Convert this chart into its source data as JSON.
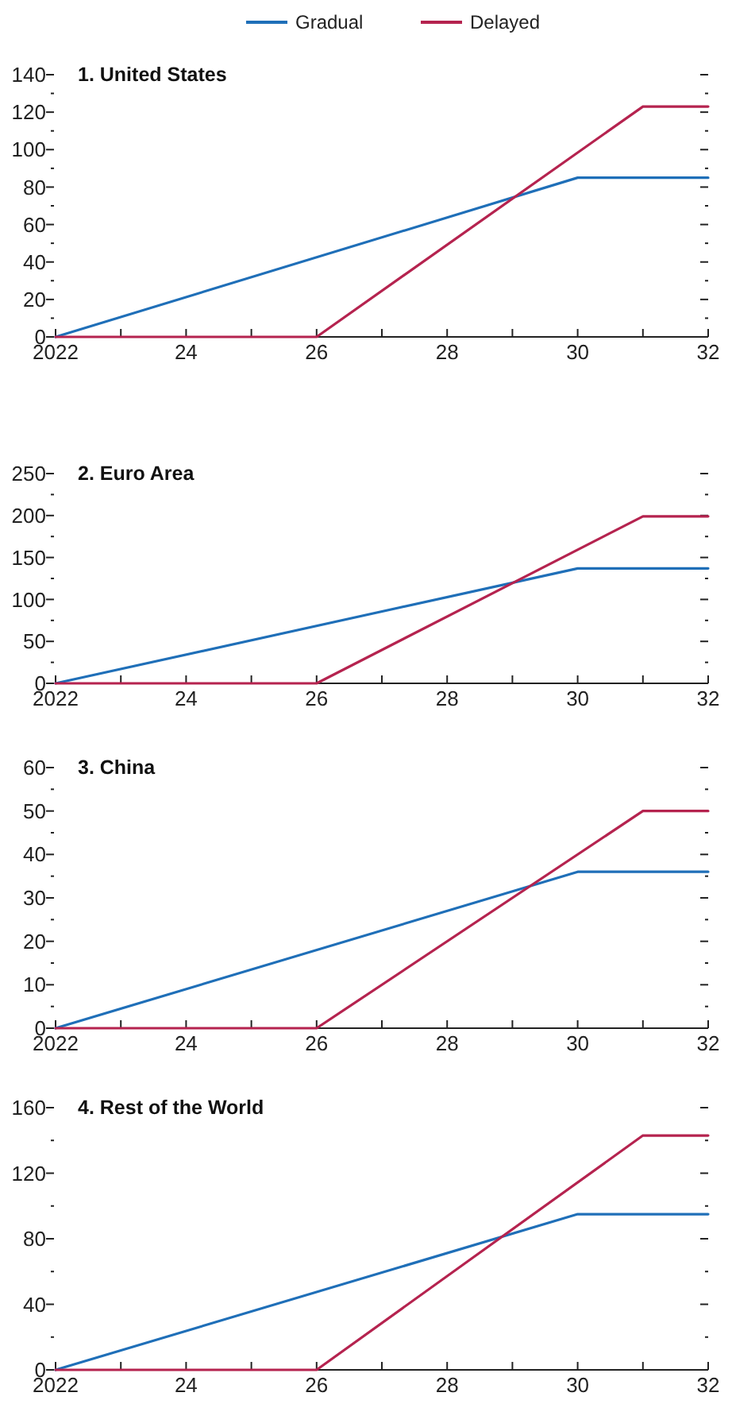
{
  "chart_data": [
    {
      "type": "line",
      "title": "1. United States",
      "legend": "top",
      "xlim": [
        2022,
        2032
      ],
      "xticks": [
        {
          "value": 2022,
          "label": "2022"
        },
        {
          "value": 2023,
          "label": null
        },
        {
          "value": 2024,
          "label": "24"
        },
        {
          "value": 2025,
          "label": null
        },
        {
          "value": 2026,
          "label": "26"
        },
        {
          "value": 2027,
          "label": null
        },
        {
          "value": 2028,
          "label": "28"
        },
        {
          "value": 2029,
          "label": null
        },
        {
          "value": 2030,
          "label": "30"
        },
        {
          "value": 2031,
          "label": null
        },
        {
          "value": 2032,
          "label": "32"
        }
      ],
      "ylim": [
        0,
        140
      ],
      "yticks": [
        0,
        {
          "value": 10,
          "label": null
        },
        20,
        {
          "value": 30,
          "label": null
        },
        40,
        {
          "value": 50,
          "label": null
        },
        60,
        {
          "value": 70,
          "label": null
        },
        80,
        {
          "value": 90,
          "label": null
        },
        100,
        {
          "value": 110,
          "label": null
        },
        120,
        {
          "value": 130,
          "label": null
        },
        140
      ],
      "series": [
        {
          "name": "Gradual",
          "color": "#1f6fb8",
          "x": [
            2022,
            2030,
            2032
          ],
          "values": [
            0,
            85,
            85
          ]
        },
        {
          "name": "Delayed",
          "color": "#b5234f",
          "x": [
            2022,
            2026,
            2031,
            2032
          ],
          "values": [
            0,
            0,
            123,
            123
          ]
        }
      ]
    },
    {
      "type": "line",
      "title": "2. Euro Area",
      "xlim": [
        2022,
        2032
      ],
      "xticks": [
        {
          "value": 2022,
          "label": "2022"
        },
        {
          "value": 2023,
          "label": null
        },
        {
          "value": 2024,
          "label": "24"
        },
        {
          "value": 2025,
          "label": null
        },
        {
          "value": 2026,
          "label": "26"
        },
        {
          "value": 2027,
          "label": null
        },
        {
          "value": 2028,
          "label": "28"
        },
        {
          "value": 2029,
          "label": null
        },
        {
          "value": 2030,
          "label": "30"
        },
        {
          "value": 2031,
          "label": null
        },
        {
          "value": 2032,
          "label": "32"
        }
      ],
      "ylim": [
        0,
        250
      ],
      "yticks": [
        0,
        {
          "value": 25,
          "label": null
        },
        50,
        {
          "value": 75,
          "label": null
        },
        100,
        {
          "value": 125,
          "label": null
        },
        150,
        {
          "value": 175,
          "label": null
        },
        200,
        {
          "value": 225,
          "label": null
        },
        250
      ],
      "series": [
        {
          "color": "#1f6fb8",
          "x": [
            2022,
            2030,
            2032
          ],
          "values": [
            0,
            137,
            137
          ]
        },
        {
          "color": "#b5234f",
          "x": [
            2022,
            2026,
            2031,
            2032
          ],
          "values": [
            0,
            0,
            199,
            199
          ]
        }
      ]
    },
    {
      "type": "line",
      "title": "3. China",
      "xlim": [
        2022,
        2032
      ],
      "xticks": [
        {
          "value": 2022,
          "label": "2022"
        },
        {
          "value": 2023,
          "label": null
        },
        {
          "value": 2024,
          "label": "24"
        },
        {
          "value": 2025,
          "label": null
        },
        {
          "value": 2026,
          "label": "26"
        },
        {
          "value": 2027,
          "label": null
        },
        {
          "value": 2028,
          "label": "28"
        },
        {
          "value": 2029,
          "label": null
        },
        {
          "value": 2030,
          "label": "30"
        },
        {
          "value": 2031,
          "label": null
        },
        {
          "value": 2032,
          "label": "32"
        }
      ],
      "ylim": [
        0,
        60
      ],
      "yticks": [
        0,
        {
          "value": 5,
          "label": null
        },
        10,
        {
          "value": 15,
          "label": null
        },
        20,
        {
          "value": 25,
          "label": null
        },
        30,
        {
          "value": 35,
          "label": null
        },
        40,
        {
          "value": 45,
          "label": null
        },
        50,
        {
          "value": 55,
          "label": null
        },
        60
      ],
      "series": [
        {
          "color": "#1f6fb8",
          "x": [
            2022,
            2030,
            2032
          ],
          "values": [
            0,
            36,
            36
          ]
        },
        {
          "color": "#b5234f",
          "x": [
            2022,
            2026,
            2031,
            2032
          ],
          "values": [
            0,
            0,
            50,
            50
          ]
        }
      ]
    },
    {
      "type": "line",
      "title": "4. Rest of the World",
      "xlim": [
        2022,
        2032
      ],
      "xticks": [
        {
          "value": 2022,
          "label": "2022"
        },
        {
          "value": 2023,
          "label": null
        },
        {
          "value": 2024,
          "label": "24"
        },
        {
          "value": 2025,
          "label": null
        },
        {
          "value": 2026,
          "label": "26"
        },
        {
          "value": 2027,
          "label": null
        },
        {
          "value": 2028,
          "label": "28"
        },
        {
          "value": 2029,
          "label": null
        },
        {
          "value": 2030,
          "label": "30"
        },
        {
          "value": 2031,
          "label": null
        },
        {
          "value": 2032,
          "label": "32"
        }
      ],
      "ylim": [
        0,
        160
      ],
      "yticks": [
        0,
        {
          "value": 20,
          "label": null
        },
        40,
        {
          "value": 60,
          "label": null
        },
        80,
        {
          "value": 100,
          "label": null
        },
        120,
        {
          "value": 140,
          "label": null
        },
        160
      ],
      "series": [
        {
          "color": "#1f6fb8",
          "x": [
            2022,
            2030,
            2032
          ],
          "values": [
            0,
            95,
            95
          ]
        },
        {
          "color": "#b5234f",
          "x": [
            2022,
            2026,
            2031,
            2032
          ],
          "values": [
            0,
            0,
            143,
            143
          ]
        }
      ]
    }
  ]
}
